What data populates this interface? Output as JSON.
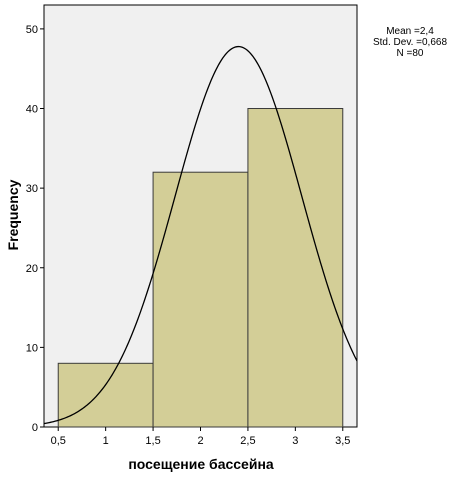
{
  "chart_data": {
    "type": "bar",
    "subtype": "histogram",
    "xlabel": "посещение бассейна",
    "ylabel": "Frequency",
    "bins": [
      {
        "start": 0.5,
        "end": 1.5,
        "count": 8
      },
      {
        "start": 1.5,
        "end": 2.5,
        "count": 32
      },
      {
        "start": 2.5,
        "end": 3.5,
        "count": 40
      }
    ],
    "xlim": [
      0.35,
      3.65
    ],
    "ylim": [
      0,
      53
    ],
    "x_ticks": [
      0.5,
      1,
      1.5,
      2,
      2.5,
      3,
      3.5
    ],
    "x_tick_labels": [
      "0,5",
      "1",
      "1,5",
      "2",
      "2,5",
      "3",
      "3,5"
    ],
    "y_ticks": [
      0,
      10,
      20,
      30,
      40,
      50
    ],
    "y_tick_labels": [
      "0",
      "10",
      "20",
      "30",
      "40",
      "50"
    ],
    "normal_curve": {
      "mean": 2.4,
      "std_dev": 0.668,
      "n": 80,
      "bin_width": 1
    },
    "stats_lines": [
      "Mean =2,4",
      "Std. Dev. =0,668",
      "N =80"
    ],
    "grid": false,
    "colors": {
      "plot_background": "#f0f0f0",
      "bar_fill": "#d3ce97",
      "bar_stroke": "#3a3a3a",
      "curve": "#000000"
    }
  }
}
